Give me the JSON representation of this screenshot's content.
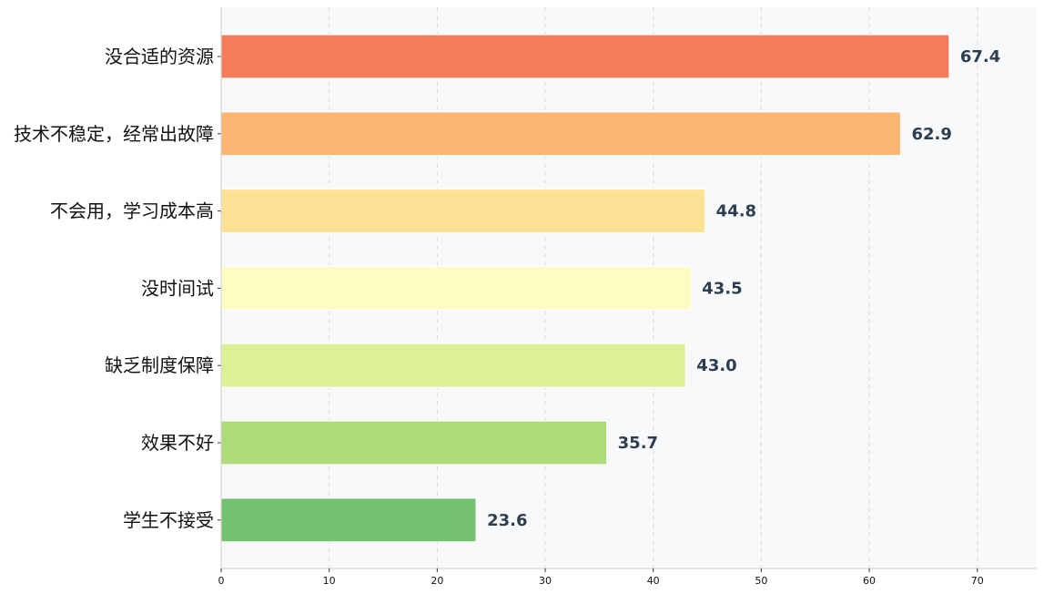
{
  "chart_data": {
    "type": "bar",
    "orientation": "horizontal",
    "categories": [
      "没合适的资源",
      "技术不稳定，经常出故障",
      "不会用，学习成本高",
      "没时间试",
      "缺乏制度保障",
      "效果不好",
      "学生不接受"
    ],
    "values": [
      67.4,
      62.9,
      44.8,
      43.5,
      43.0,
      35.7,
      23.6
    ],
    "value_labels": [
      "67.4",
      "62.9",
      "44.8",
      "43.5",
      "43.0",
      "35.7",
      "23.6"
    ],
    "bar_colors": [
      "#f57c58",
      "#fdb572",
      "#fce195",
      "#fdfdc3",
      "#dcf095",
      "#acdb78",
      "#72c270"
    ],
    "xlim": [
      0,
      75.5
    ],
    "xticks": [
      0,
      10,
      20,
      30,
      40,
      50,
      60,
      70
    ],
    "xtick_labels": [
      "0",
      "10",
      "20",
      "30",
      "40",
      "50",
      "60",
      "70"
    ],
    "title": "",
    "xlabel": "",
    "ylabel": "",
    "grid": "vertical-dashed",
    "plot_background": "#f8f9fa",
    "value_label_color": "#2c3e50"
  }
}
